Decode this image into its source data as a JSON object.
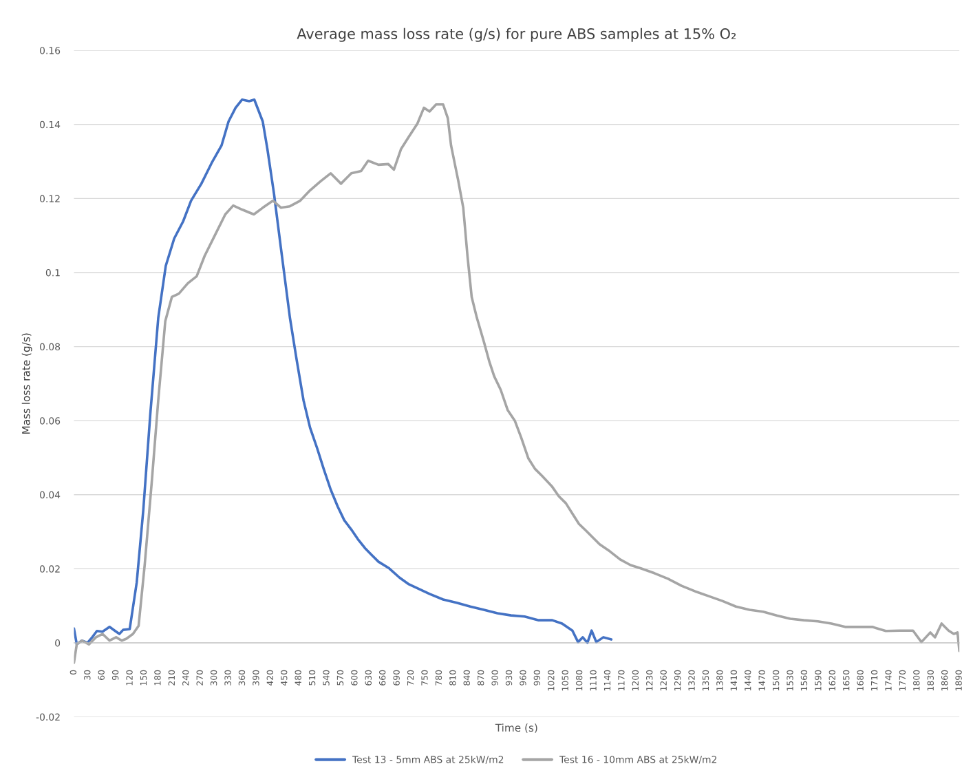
{
  "chart_data": {
    "type": "line",
    "title": "Average mass loss rate (g/s) for pure ABS samples at 15% O₂",
    "xlabel": "Time (s)",
    "ylabel": "Mass loss rate (g/s)",
    "xlim": [
      0,
      1890
    ],
    "xticks": [
      0,
      30,
      60,
      90,
      120,
      150,
      180,
      210,
      240,
      270,
      300,
      330,
      360,
      390,
      420,
      450,
      480,
      510,
      540,
      570,
      600,
      630,
      660,
      690,
      720,
      750,
      780,
      810,
      840,
      870,
      900,
      930,
      960,
      990,
      1020,
      1050,
      1080,
      1110,
      1140,
      1170,
      1200,
      1230,
      1260,
      1290,
      1320,
      1350,
      1380,
      1410,
      1440,
      1470,
      1500,
      1530,
      1560,
      1590,
      1620,
      1650,
      1680,
      1710,
      1740,
      1770,
      1800,
      1830,
      1860,
      1890
    ],
    "ylim": [
      -0.02,
      0.16
    ],
    "yticks": [
      {
        "value": -0.02,
        "label": "-0.02"
      },
      0,
      0.02,
      0.04,
      0.06,
      0.08,
      0.1,
      0.12,
      0.14,
      0.16
    ],
    "grid": "y",
    "legend": "bottom",
    "marker": "none",
    "line_style": "solid",
    "series": [
      {
        "name": "Test 13 - 5mm ABS at 25kW/m2",
        "color": "#4472c4",
        "x": [
          0,
          6,
          17,
          29,
          39,
          49,
          61,
          76,
          87,
          97,
          105,
          119,
          134,
          148,
          163,
          180,
          196,
          214,
          233,
          250,
          272,
          294,
          315,
          330,
          345,
          359,
          374,
          385,
          403,
          413,
          427,
          442,
          461,
          475,
          490,
          504,
          519,
          533,
          548,
          563,
          577,
          592,
          606,
          621,
          635,
          650,
          673,
          695,
          715,
          737,
          759,
          788,
          817,
          846,
          875,
          904,
          933,
          962,
          992,
          1021,
          1042,
          1064,
          1076,
          1086,
          1096,
          1105,
          1115,
          1130,
          1147
        ],
        "values": [
          0.0039,
          -0.0004,
          0.0006,
          0,
          0.0015,
          0.0032,
          0.003,
          0.0043,
          0.0033,
          0.0024,
          0.0035,
          0.0037,
          0.0163,
          0.0358,
          0.0618,
          0.0878,
          0.1018,
          0.1092,
          0.1138,
          0.1194,
          0.124,
          0.1296,
          0.1343,
          0.1408,
          0.1445,
          0.1467,
          0.1463,
          0.1467,
          0.1408,
          0.1333,
          0.1213,
          0.1064,
          0.0878,
          0.0767,
          0.0655,
          0.0581,
          0.0526,
          0.047,
          0.0414,
          0.0368,
          0.0331,
          0.0306,
          0.028,
          0.0256,
          0.0238,
          0.0219,
          0.0201,
          0.0176,
          0.0158,
          0.0145,
          0.0132,
          0.0117,
          0.0108,
          0.0098,
          0.0089,
          0.008,
          0.0074,
          0.0071,
          0.0061,
          0.0061,
          0.0052,
          0.0033,
          0.0002,
          0.0015,
          0,
          0.0033,
          0.0002,
          0.0015,
          0.0009
        ]
      },
      {
        "name": "Test 16 - 10mm ABS at 25kW/m2",
        "color": "#a5a5a5",
        "x": [
          0,
          6,
          17,
          32,
          47,
          61,
          76,
          90,
          102,
          112,
          126,
          138,
          151,
          166,
          180,
          195,
          209,
          224,
          243,
          262,
          279,
          301,
          323,
          340,
          359,
          384,
          403,
          425,
          442,
          461,
          483,
          504,
          526,
          548,
          570,
          592,
          613,
          628,
          650,
          671,
          683,
          698,
          715,
          733,
          747,
          759,
          773,
          788,
          798,
          805,
          820,
          831,
          840,
          849,
          860,
          875,
          887,
          897,
          911,
          926,
          941,
          955,
          970,
          984,
          999,
          1020,
          1035,
          1050,
          1064,
          1078,
          1093,
          1108,
          1122,
          1144,
          1166,
          1188,
          1210,
          1239,
          1268,
          1297,
          1326,
          1355,
          1384,
          1413,
          1442,
          1471,
          1500,
          1529,
          1558,
          1588,
          1617,
          1646,
          1675,
          1704,
          1733,
          1762,
          1791,
          1809,
          1828,
          1838,
          1852,
          1867,
          1878,
          1886,
          1890
        ],
        "values": [
          -0.0054,
          -0.0004,
          0.0006,
          -0.0004,
          0.0015,
          0.0024,
          0.0006,
          0.0015,
          0.0006,
          0.0011,
          0.0024,
          0.0046,
          0.021,
          0.0433,
          0.0656,
          0.0869,
          0.0934,
          0.0943,
          0.0971,
          0.099,
          0.1045,
          0.1101,
          0.1157,
          0.1181,
          0.117,
          0.1157,
          0.1175,
          0.1194,
          0.1175,
          0.1179,
          0.1194,
          0.1222,
          0.1246,
          0.1268,
          0.124,
          0.1268,
          0.1274,
          0.1302,
          0.1291,
          0.1293,
          0.1278,
          0.1333,
          0.1367,
          0.1402,
          0.1445,
          0.1435,
          0.1454,
          0.1454,
          0.1417,
          0.1343,
          0.125,
          0.1175,
          0.1045,
          0.0934,
          0.0878,
          0.0813,
          0.0758,
          0.072,
          0.0683,
          0.0628,
          0.06,
          0.0553,
          0.0498,
          0.047,
          0.0451,
          0.0423,
          0.0396,
          0.0377,
          0.0349,
          0.0321,
          0.0303,
          0.0284,
          0.0266,
          0.0247,
          0.0225,
          0.021,
          0.0201,
          0.0188,
          0.0173,
          0.0154,
          0.0139,
          0.0126,
          0.0113,
          0.0098,
          0.0089,
          0.0084,
          0.0074,
          0.0065,
          0.0061,
          0.0058,
          0.0052,
          0.0043,
          0.0043,
          0.0043,
          0.0032,
          0.0033,
          0.0033,
          0.0002,
          0.0028,
          0.0015,
          0.0052,
          0.0033,
          0.0024,
          0.0028,
          -0.0022
        ]
      }
    ]
  }
}
